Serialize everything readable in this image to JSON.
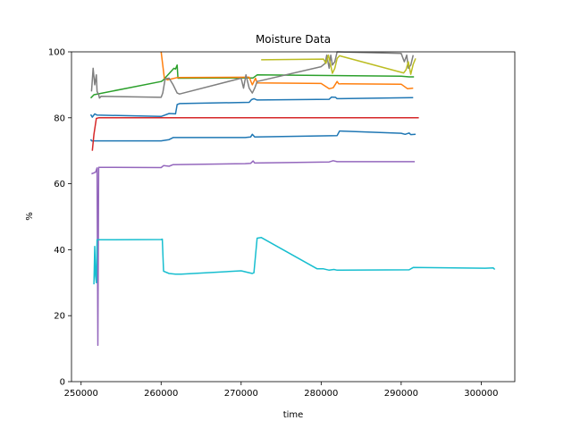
{
  "chart_data": {
    "type": "line",
    "title": "Moisture Data",
    "xlabel": "time",
    "ylabel": "%",
    "xlim": [
      248800,
      304200
    ],
    "ylim": [
      0,
      100
    ],
    "xticks": [
      250000,
      260000,
      270000,
      280000,
      290000,
      300000
    ],
    "xtick_labels": [
      "250000",
      "260000",
      "270000",
      "280000",
      "290000",
      "300000"
    ],
    "yticks": [
      0,
      20,
      40,
      60,
      80,
      100
    ],
    "ytick_labels": [
      "0",
      "20",
      "40",
      "60",
      "80",
      "100"
    ],
    "grid": false,
    "legend": false,
    "series": [
      {
        "color": "#1f77b4",
        "points": [
          [
            251200,
            81
          ],
          [
            251400,
            80.2
          ],
          [
            251700,
            81.2
          ],
          [
            252000,
            80.8
          ],
          [
            260000,
            80.4
          ],
          [
            261000,
            81.3
          ],
          [
            261800,
            81.2
          ],
          [
            262000,
            84
          ],
          [
            262300,
            84.3
          ],
          [
            271000,
            84.7
          ],
          [
            271300,
            85.5
          ],
          [
            271600,
            85.8
          ],
          [
            272000,
            85.4
          ],
          [
            281000,
            85.6
          ],
          [
            281300,
            86.3
          ],
          [
            281800,
            86.2
          ],
          [
            282000,
            85.8
          ],
          [
            291500,
            86.1
          ]
        ]
      },
      {
        "color": "#1f77b4",
        "points": [
          [
            251200,
            73.5
          ],
          [
            251300,
            73
          ],
          [
            260000,
            73
          ],
          [
            261000,
            73.4
          ],
          [
            261500,
            74
          ],
          [
            270500,
            74
          ],
          [
            271200,
            74.2
          ],
          [
            271400,
            75
          ],
          [
            271700,
            74.2
          ],
          [
            282000,
            74.6
          ],
          [
            282300,
            76
          ],
          [
            290000,
            75.3
          ],
          [
            290500,
            75
          ],
          [
            291000,
            75.4
          ],
          [
            291200,
            74.9
          ],
          [
            291800,
            75
          ]
        ]
      },
      {
        "color": "#d62728",
        "points": [
          [
            251400,
            70
          ],
          [
            251600,
            75
          ],
          [
            251900,
            79.8
          ],
          [
            252200,
            80
          ],
          [
            292200,
            80
          ]
        ]
      },
      {
        "color": "#9467bd",
        "points": [
          [
            251300,
            63
          ],
          [
            251800,
            63.5
          ],
          [
            252000,
            64.8
          ],
          [
            252100,
            11
          ],
          [
            252200,
            65
          ],
          [
            260000,
            64.9
          ],
          [
            260300,
            65.5
          ],
          [
            261000,
            65.3
          ],
          [
            261500,
            65.8
          ],
          [
            270500,
            66.1
          ],
          [
            271200,
            66.2
          ],
          [
            271500,
            66.9
          ],
          [
            271700,
            66.3
          ],
          [
            281000,
            66.6
          ],
          [
            281500,
            67
          ],
          [
            282000,
            66.7
          ],
          [
            291700,
            66.7
          ]
        ]
      },
      {
        "color": "#17becf",
        "points": [
          [
            251600,
            29.5
          ],
          [
            251700,
            41
          ],
          [
            251800,
            32
          ],
          [
            251900,
            30
          ],
          [
            252000,
            43
          ],
          [
            260000,
            43.1
          ],
          [
            260150,
            43.2
          ],
          [
            260300,
            33.5
          ],
          [
            261000,
            32.8
          ],
          [
            261800,
            32.6
          ],
          [
            262500,
            32.6
          ],
          [
            270000,
            33.6
          ],
          [
            271400,
            32.8
          ],
          [
            271600,
            33
          ],
          [
            272000,
            43.5
          ],
          [
            272500,
            43.7
          ],
          [
            279500,
            34.2
          ],
          [
            280300,
            34.2
          ],
          [
            281000,
            33.8
          ],
          [
            281600,
            34
          ],
          [
            282000,
            33.8
          ],
          [
            291000,
            33.9
          ],
          [
            291500,
            34.6
          ],
          [
            300500,
            34.4
          ],
          [
            301500,
            34.5
          ],
          [
            301700,
            34
          ]
        ]
      },
      {
        "color": "#2ca02c",
        "points": [
          [
            251200,
            86
          ],
          [
            251600,
            87
          ],
          [
            260000,
            91
          ],
          [
            260200,
            91.3
          ],
          [
            261600,
            95
          ],
          [
            261800,
            94.8
          ],
          [
            262000,
            96
          ],
          [
            262100,
            92
          ],
          [
            271500,
            92.1
          ],
          [
            272000,
            93
          ],
          [
            290000,
            92.6
          ],
          [
            291000,
            92.4
          ],
          [
            291600,
            92.4
          ]
        ]
      },
      {
        "color": "#ff7f0e",
        "points": [
          [
            260000,
            100
          ],
          [
            260200,
            96
          ],
          [
            260400,
            92
          ],
          [
            260800,
            91.5
          ],
          [
            262000,
            92.2
          ],
          [
            271000,
            92.3
          ],
          [
            271400,
            90
          ],
          [
            271800,
            92
          ],
          [
            272000,
            90.6
          ],
          [
            280000,
            90.4
          ],
          [
            281000,
            88.8
          ],
          [
            281500,
            89.1
          ],
          [
            282000,
            91
          ],
          [
            282200,
            90.3
          ],
          [
            290000,
            90.2
          ],
          [
            290800,
            88.8
          ],
          [
            291500,
            89
          ]
        ]
      },
      {
        "color": "#7f7f7f",
        "points": [
          [
            251300,
            88
          ],
          [
            251500,
            95
          ],
          [
            251700,
            90
          ],
          [
            251900,
            93
          ],
          [
            252000,
            88
          ],
          [
            252200,
            87
          ],
          [
            252300,
            86
          ],
          [
            252500,
            86.5
          ],
          [
            260000,
            86.2
          ],
          [
            260200,
            87.5
          ],
          [
            260500,
            91.8
          ],
          [
            261000,
            92
          ],
          [
            261500,
            90
          ],
          [
            262000,
            87.5
          ],
          [
            262300,
            87.2
          ],
          [
            270000,
            92
          ],
          [
            270300,
            89
          ],
          [
            270600,
            93
          ],
          [
            271000,
            89
          ],
          [
            271400,
            87.5
          ],
          [
            271700,
            89
          ],
          [
            272000,
            91
          ],
          [
            280000,
            95.5
          ],
          [
            280500,
            96.5
          ],
          [
            280700,
            99
          ],
          [
            281000,
            95
          ],
          [
            281200,
            99
          ],
          [
            281400,
            96
          ],
          [
            281700,
            97
          ],
          [
            282000,
            100
          ],
          [
            290000,
            99.5
          ],
          [
            290400,
            97
          ],
          [
            290700,
            99
          ],
          [
            290900,
            95
          ],
          [
            291200,
            96
          ],
          [
            291500,
            99
          ]
        ]
      },
      {
        "color": "#bcbd22",
        "points": [
          [
            272500,
            97.6
          ],
          [
            280300,
            97.8
          ],
          [
            280600,
            96.5
          ],
          [
            280900,
            99
          ],
          [
            281100,
            97
          ],
          [
            281400,
            93.5
          ],
          [
            281700,
            95
          ],
          [
            282000,
            98
          ],
          [
            282300,
            98.8
          ],
          [
            290300,
            93.6
          ],
          [
            290600,
            94.5
          ],
          [
            290900,
            97
          ],
          [
            291200,
            93.2
          ],
          [
            291500,
            96.2
          ],
          [
            291800,
            98
          ]
        ]
      }
    ]
  }
}
